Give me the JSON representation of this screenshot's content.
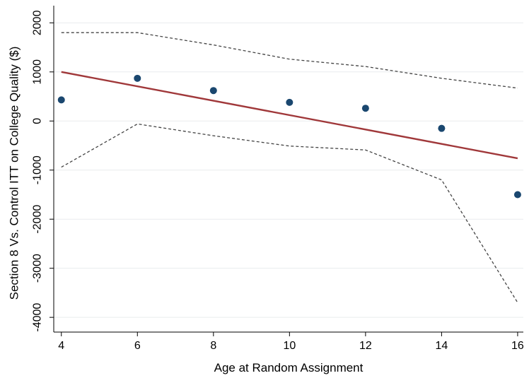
{
  "chart_data": {
    "type": "scatter",
    "title": "",
    "xlabel": "Age at Random Assignment",
    "ylabel": "Section 8 Vs. Control ITT on College Quality ($)",
    "xlim": [
      3.8,
      16.15
    ],
    "ylim": [
      -4300,
      2350
    ],
    "x_ticks": [
      4,
      6,
      8,
      10,
      12,
      14,
      16
    ],
    "y_ticks": [
      -4000,
      -3000,
      -2000,
      -1000,
      0,
      1000,
      2000
    ],
    "grid": "horizontal",
    "legend": "none",
    "series": [
      {
        "type": "scatter",
        "color": "#1a476f",
        "x": [
          4,
          6,
          8,
          10,
          12,
          14,
          16
        ],
        "y": [
          430,
          870,
          620,
          380,
          260,
          -150,
          -1500
        ]
      },
      {
        "type": "line",
        "style": "solid",
        "color": "#a0383a",
        "x": [
          4,
          16
        ],
        "y": [
          1000,
          -760
        ]
      },
      {
        "type": "line",
        "style": "dashed",
        "color": "#444444",
        "x": [
          4,
          6,
          8,
          10,
          12,
          14,
          16
        ],
        "y": [
          1800,
          1800,
          1550,
          1260,
          1110,
          870,
          670
        ]
      },
      {
        "type": "line",
        "style": "dashed",
        "color": "#444444",
        "x": [
          4,
          6,
          8,
          10,
          12,
          14,
          16
        ],
        "y": [
          -940,
          -60,
          -300,
          -510,
          -590,
          -1200,
          -3700
        ]
      }
    ]
  }
}
